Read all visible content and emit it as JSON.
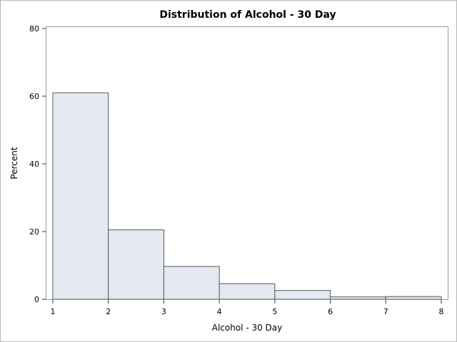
{
  "chart_data": {
    "type": "bar",
    "title": "Distribution of Alcohol - 30 Day",
    "xlabel": "Alcohol - 30 Day",
    "ylabel": "Percent",
    "xlim": [
      1,
      8
    ],
    "ylim": [
      0,
      80
    ],
    "xticks": [
      1,
      2,
      3,
      4,
      5,
      6,
      7,
      8
    ],
    "yticks": [
      0,
      20,
      40,
      60,
      80
    ],
    "bins": [
      {
        "start": 1,
        "end": 2,
        "value": 61
      },
      {
        "start": 2,
        "end": 3,
        "value": 20.5
      },
      {
        "start": 3,
        "end": 4,
        "value": 9.7
      },
      {
        "start": 4,
        "end": 5,
        "value": 4.6
      },
      {
        "start": 5,
        "end": 6,
        "value": 2.6
      },
      {
        "start": 6,
        "end": 7,
        "value": 0.7
      },
      {
        "start": 7,
        "end": 8,
        "value": 0.8
      }
    ],
    "grid": false,
    "colors": {
      "bar_fill": "#e4e8f1",
      "bar_stroke": "#55585e",
      "frame": "#9a9a9a"
    }
  }
}
